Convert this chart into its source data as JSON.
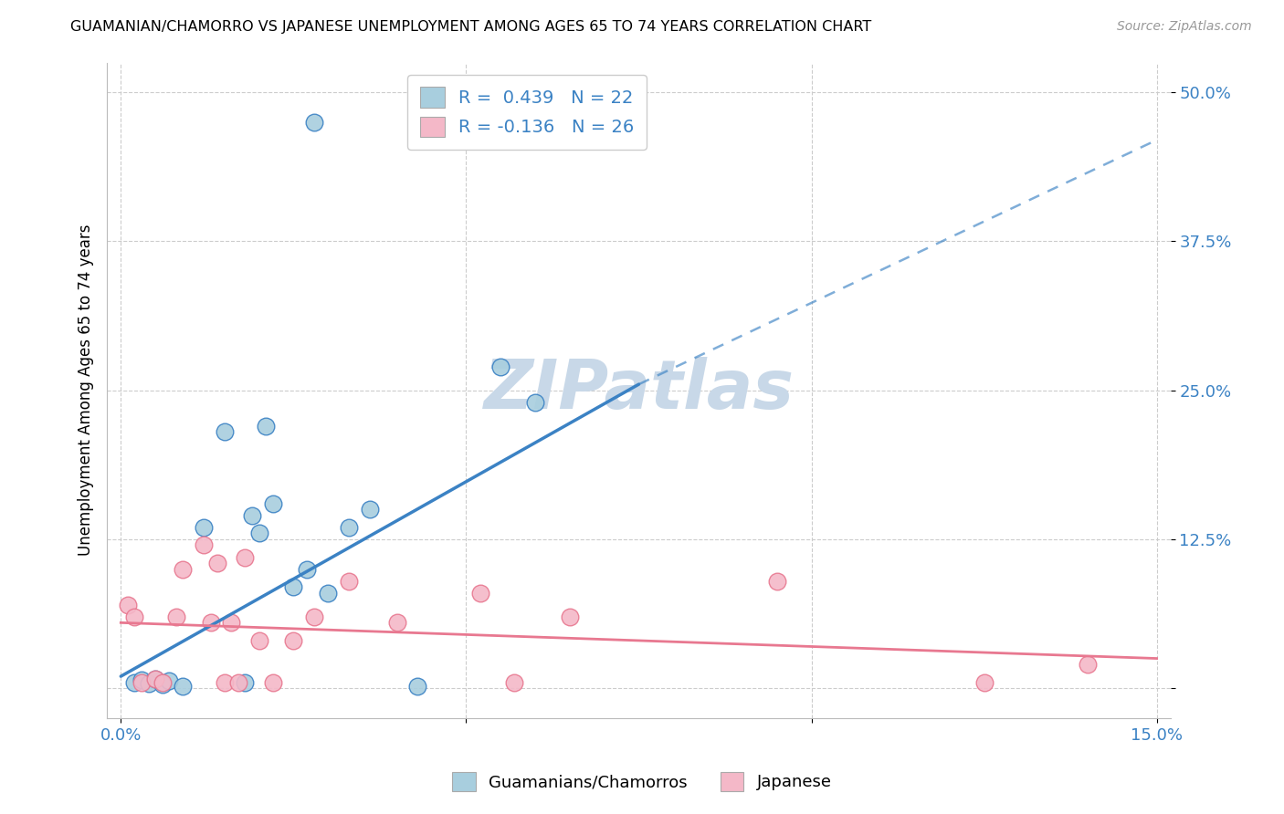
{
  "title": "GUAMANIAN/CHAMORRO VS JAPANESE UNEMPLOYMENT AMONG AGES 65 TO 74 YEARS CORRELATION CHART",
  "source": "Source: ZipAtlas.com",
  "ylabel": "Unemployment Among Ages 65 to 74 years",
  "xlim": [
    0.0,
    0.15
  ],
  "ylim": [
    0.0,
    0.52
  ],
  "blue_r": 0.439,
  "blue_n": 22,
  "pink_r": -0.136,
  "pink_n": 26,
  "blue_color": "#A8CEDE",
  "pink_color": "#F4B8C8",
  "blue_line_color": "#3B82C4",
  "pink_line_color": "#E87890",
  "blue_line_solid": [
    [
      0.0,
      0.01
    ],
    [
      0.075,
      0.255
    ]
  ],
  "blue_line_dashed": [
    [
      0.075,
      0.255
    ],
    [
      0.15,
      0.46
    ]
  ],
  "pink_line": [
    [
      0.0,
      0.055
    ],
    [
      0.15,
      0.025
    ]
  ],
  "blue_scatter": [
    [
      0.002,
      0.005
    ],
    [
      0.003,
      0.007
    ],
    [
      0.004,
      0.004
    ],
    [
      0.005,
      0.008
    ],
    [
      0.006,
      0.003
    ],
    [
      0.007,
      0.006
    ],
    [
      0.009,
      0.002
    ],
    [
      0.012,
      0.135
    ],
    [
      0.015,
      0.215
    ],
    [
      0.018,
      0.005
    ],
    [
      0.019,
      0.145
    ],
    [
      0.02,
      0.13
    ],
    [
      0.021,
      0.22
    ],
    [
      0.022,
      0.155
    ],
    [
      0.025,
      0.085
    ],
    [
      0.027,
      0.1
    ],
    [
      0.03,
      0.08
    ],
    [
      0.033,
      0.135
    ],
    [
      0.036,
      0.15
    ],
    [
      0.043,
      0.002
    ],
    [
      0.055,
      0.27
    ],
    [
      0.06,
      0.24
    ]
  ],
  "blue_outlier": [
    0.028,
    0.475
  ],
  "pink_scatter": [
    [
      0.001,
      0.07
    ],
    [
      0.002,
      0.06
    ],
    [
      0.003,
      0.005
    ],
    [
      0.005,
      0.008
    ],
    [
      0.006,
      0.005
    ],
    [
      0.008,
      0.06
    ],
    [
      0.009,
      0.1
    ],
    [
      0.012,
      0.12
    ],
    [
      0.013,
      0.055
    ],
    [
      0.014,
      0.105
    ],
    [
      0.015,
      0.005
    ],
    [
      0.016,
      0.055
    ],
    [
      0.017,
      0.005
    ],
    [
      0.018,
      0.11
    ],
    [
      0.02,
      0.04
    ],
    [
      0.022,
      0.005
    ],
    [
      0.025,
      0.04
    ],
    [
      0.028,
      0.06
    ],
    [
      0.033,
      0.09
    ],
    [
      0.04,
      0.055
    ],
    [
      0.052,
      0.08
    ],
    [
      0.057,
      0.005
    ],
    [
      0.065,
      0.06
    ],
    [
      0.095,
      0.09
    ],
    [
      0.125,
      0.005
    ],
    [
      0.14,
      0.02
    ]
  ],
  "watermark": "ZIPatlas",
  "watermark_color": "#C8D8E8",
  "background_color": "#FFFFFF",
  "grid_color": "#CCCCCC",
  "tick_color": "#3B82C4"
}
